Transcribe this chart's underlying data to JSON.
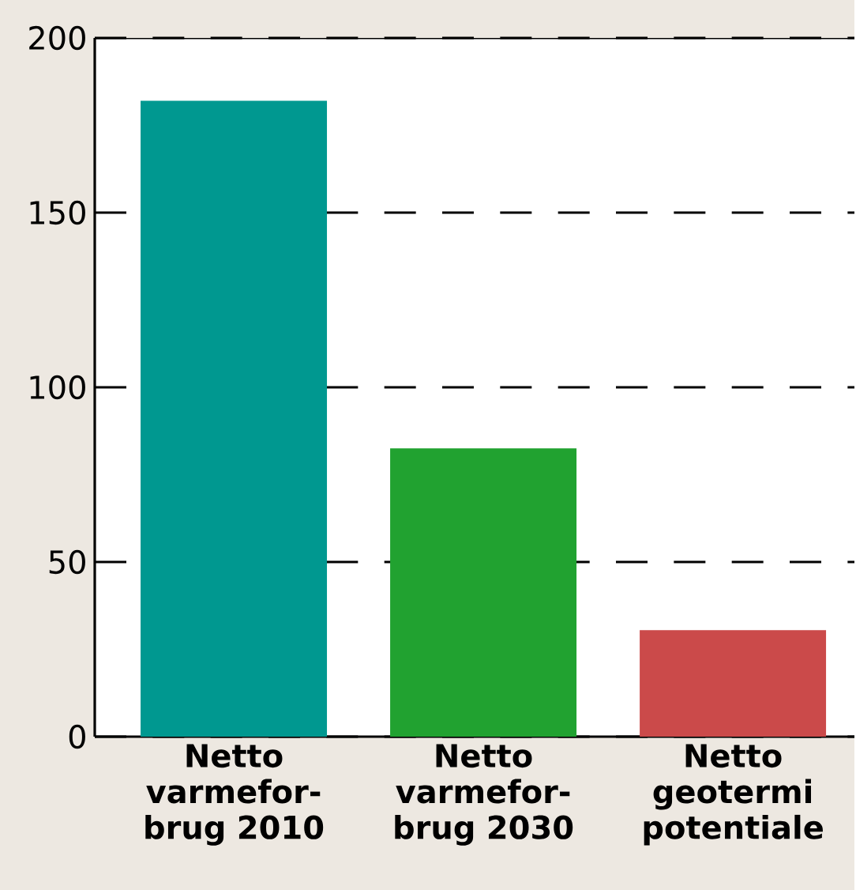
{
  "chart_data": {
    "type": "bar",
    "categories": [
      "Netto varmefor-brug 2010",
      "Netto varmefor-brug 2030",
      "Netto geotermi potentiale"
    ],
    "values": [
      182,
      82.5,
      30.5
    ],
    "colors": [
      "#009890",
      "#21a230",
      "#cb4a4a"
    ],
    "ylim": [
      0,
      200
    ],
    "yticks": [
      0,
      50,
      100,
      150,
      200
    ],
    "grid": "y"
  }
}
